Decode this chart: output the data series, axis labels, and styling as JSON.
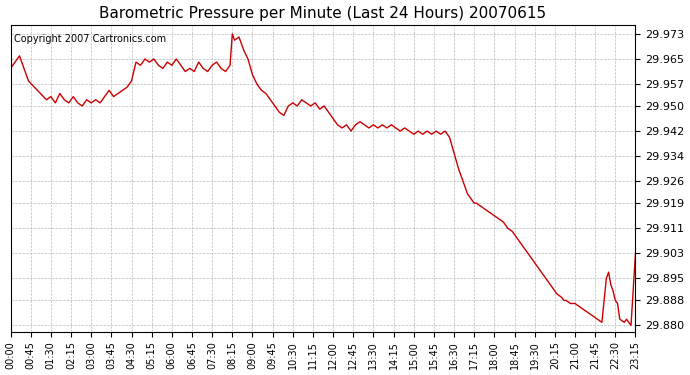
{
  "title": "Barometric Pressure per Minute (Last 24 Hours) 20070615",
  "copyright": "Copyright 2007 Cartronics.com",
  "line_color": "#cc0000",
  "bg_color": "#ffffff",
  "plot_bg_color": "#ffffff",
  "grid_color": "#bbbbbb",
  "yticks": [
    29.88,
    29.888,
    29.895,
    29.903,
    29.911,
    29.919,
    29.926,
    29.934,
    29.942,
    29.95,
    29.957,
    29.965,
    29.973
  ],
  "ylim": [
    29.878,
    29.976
  ],
  "xtick_labels": [
    "00:00",
    "00:45",
    "01:30",
    "02:15",
    "03:00",
    "03:45",
    "04:30",
    "05:15",
    "06:00",
    "06:45",
    "07:30",
    "08:15",
    "09:00",
    "09:45",
    "10:30",
    "11:15",
    "12:00",
    "12:45",
    "13:30",
    "14:15",
    "15:00",
    "15:45",
    "16:30",
    "17:15",
    "18:00",
    "18:45",
    "19:30",
    "20:15",
    "21:00",
    "21:45",
    "22:30",
    "23:15"
  ],
  "keypoints": [
    [
      0,
      29.962
    ],
    [
      20,
      29.966
    ],
    [
      40,
      29.958
    ],
    [
      60,
      29.955
    ],
    [
      80,
      29.952
    ],
    [
      90,
      29.953
    ],
    [
      100,
      29.951
    ],
    [
      110,
      29.954
    ],
    [
      120,
      29.952
    ],
    [
      130,
      29.951
    ],
    [
      140,
      29.953
    ],
    [
      150,
      29.951
    ],
    [
      160,
      29.95
    ],
    [
      170,
      29.952
    ],
    [
      180,
      29.951
    ],
    [
      190,
      29.952
    ],
    [
      200,
      29.951
    ],
    [
      210,
      29.953
    ],
    [
      220,
      29.955
    ],
    [
      230,
      29.953
    ],
    [
      240,
      29.954
    ],
    [
      250,
      29.955
    ],
    [
      260,
      29.956
    ],
    [
      270,
      29.958
    ],
    [
      280,
      29.964
    ],
    [
      290,
      29.963
    ],
    [
      300,
      29.965
    ],
    [
      310,
      29.964
    ],
    [
      320,
      29.965
    ],
    [
      330,
      29.963
    ],
    [
      340,
      29.962
    ],
    [
      350,
      29.964
    ],
    [
      360,
      29.963
    ],
    [
      370,
      29.965
    ],
    [
      380,
      29.963
    ],
    [
      390,
      29.961
    ],
    [
      400,
      29.962
    ],
    [
      410,
      29.961
    ],
    [
      420,
      29.964
    ],
    [
      430,
      29.962
    ],
    [
      440,
      29.961
    ],
    [
      450,
      29.963
    ],
    [
      460,
      29.964
    ],
    [
      470,
      29.962
    ],
    [
      480,
      29.961
    ],
    [
      490,
      29.963
    ],
    [
      495,
      29.973
    ],
    [
      500,
      29.971
    ],
    [
      510,
      29.972
    ],
    [
      515,
      29.97
    ],
    [
      520,
      29.968
    ],
    [
      530,
      29.965
    ],
    [
      540,
      29.96
    ],
    [
      550,
      29.957
    ],
    [
      560,
      29.955
    ],
    [
      570,
      29.954
    ],
    [
      580,
      29.952
    ],
    [
      590,
      29.95
    ],
    [
      600,
      29.948
    ],
    [
      610,
      29.947
    ],
    [
      620,
      29.95
    ],
    [
      630,
      29.951
    ],
    [
      640,
      29.95
    ],
    [
      650,
      29.952
    ],
    [
      660,
      29.951
    ],
    [
      670,
      29.95
    ],
    [
      680,
      29.951
    ],
    [
      690,
      29.949
    ],
    [
      700,
      29.95
    ],
    [
      710,
      29.948
    ],
    [
      720,
      29.946
    ],
    [
      730,
      29.944
    ],
    [
      740,
      29.943
    ],
    [
      750,
      29.944
    ],
    [
      760,
      29.942
    ],
    [
      770,
      29.944
    ],
    [
      780,
      29.945
    ],
    [
      790,
      29.944
    ],
    [
      800,
      29.943
    ],
    [
      810,
      29.944
    ],
    [
      820,
      29.943
    ],
    [
      830,
      29.944
    ],
    [
      840,
      29.943
    ],
    [
      850,
      29.944
    ],
    [
      860,
      29.943
    ],
    [
      870,
      29.942
    ],
    [
      880,
      29.943
    ],
    [
      890,
      29.942
    ],
    [
      900,
      29.941
    ],
    [
      910,
      29.942
    ],
    [
      920,
      29.941
    ],
    [
      930,
      29.942
    ],
    [
      940,
      29.941
    ],
    [
      950,
      29.942
    ],
    [
      960,
      29.941
    ],
    [
      970,
      29.942
    ],
    [
      980,
      29.94
    ],
    [
      990,
      29.935
    ],
    [
      1000,
      29.93
    ],
    [
      1010,
      29.926
    ],
    [
      1020,
      29.922
    ],
    [
      1030,
      29.92
    ],
    [
      1035,
      29.919
    ],
    [
      1040,
      29.919
    ],
    [
      1050,
      29.918
    ],
    [
      1060,
      29.917
    ],
    [
      1070,
      29.916
    ],
    [
      1080,
      29.915
    ],
    [
      1090,
      29.914
    ],
    [
      1100,
      29.913
    ],
    [
      1110,
      29.911
    ],
    [
      1120,
      29.91
    ],
    [
      1130,
      29.908
    ],
    [
      1140,
      29.906
    ],
    [
      1150,
      29.904
    ],
    [
      1160,
      29.902
    ],
    [
      1170,
      29.9
    ],
    [
      1180,
      29.898
    ],
    [
      1190,
      29.896
    ],
    [
      1200,
      29.894
    ],
    [
      1210,
      29.892
    ],
    [
      1220,
      29.89
    ],
    [
      1230,
      29.889
    ],
    [
      1235,
      29.888
    ],
    [
      1240,
      29.888
    ],
    [
      1250,
      29.887
    ],
    [
      1260,
      29.887
    ],
    [
      1270,
      29.886
    ],
    [
      1280,
      29.885
    ],
    [
      1290,
      29.884
    ],
    [
      1300,
      29.883
    ],
    [
      1310,
      29.882
    ],
    [
      1320,
      29.881
    ],
    [
      1330,
      29.895
    ],
    [
      1335,
      29.897
    ],
    [
      1340,
      29.893
    ],
    [
      1345,
      29.891
    ],
    [
      1350,
      29.888
    ],
    [
      1355,
      29.887
    ],
    [
      1360,
      29.882
    ],
    [
      1370,
      29.881
    ],
    [
      1375,
      29.882
    ],
    [
      1380,
      29.881
    ],
    [
      1385,
      29.88
    ],
    [
      1395,
      29.903
    ]
  ]
}
